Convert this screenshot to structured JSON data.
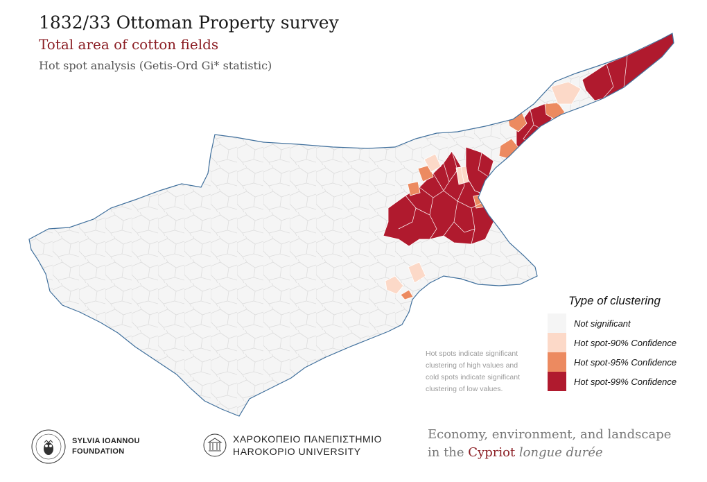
{
  "header": {
    "title": "1832/33 Ottoman Property survey",
    "subtitle": "Total area of cotton fields",
    "analysis": "Hot spot analysis (Getis-Ord Gi* statistic)"
  },
  "legend": {
    "title": "Type of clustering",
    "items": [
      {
        "label": "Not significant",
        "color": "#f5f5f5"
      },
      {
        "label": "Hot spot-90% Confidence",
        "color": "#fcd9c8"
      },
      {
        "label": "Hot spot-95% Confidence",
        "color": "#ec8a60"
      },
      {
        "label": "Hot spot-99% Confidence",
        "color": "#b01a2e"
      }
    ]
  },
  "note": {
    "lines": [
      "Hot spots indicate significant",
      "clustering of high values and",
      "cold spots indicate significant",
      "clustering of low values."
    ]
  },
  "footer": {
    "sylvia": {
      "line1": "SYLVIA IOANNOU",
      "line2": "FOUNDATION",
      "icon": "owl-seal-icon"
    },
    "harokopio": {
      "greek": "ΧΑΡΟΚΟΠΕΙΟ ΠΑΝΕΠΙΣΤΗΜΙΟ",
      "english": "HAROKOPIO UNIVERSITY",
      "icon": "temple-seal-icon"
    },
    "tagline": {
      "line1": "Economy, environment, and landscape",
      "prefix": "in the ",
      "highlight": "Cypriot",
      "suffix": "longue durée"
    }
  },
  "colors": {
    "coast": "#3f6f9c",
    "cell_border": "#dcdcdc",
    "accent": "#8b1e24"
  }
}
